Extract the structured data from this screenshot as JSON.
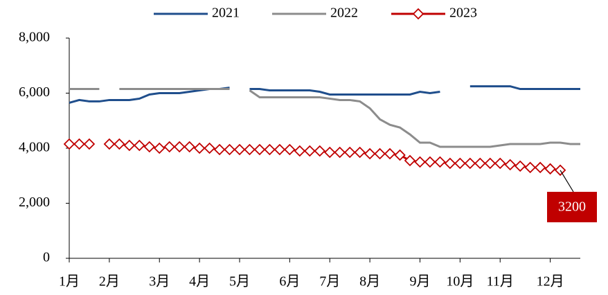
{
  "chart_data": {
    "type": "line",
    "categories": [
      "1月",
      null,
      null,
      null,
      "2月",
      null,
      null,
      null,
      null,
      "3月",
      null,
      null,
      null,
      "4月",
      null,
      null,
      null,
      "5月",
      null,
      null,
      null,
      null,
      "6月",
      null,
      null,
      null,
      "7月",
      null,
      null,
      null,
      "8月",
      null,
      null,
      null,
      null,
      "9月",
      null,
      null,
      null,
      "10月",
      null,
      null,
      null,
      "11月",
      null,
      null,
      null,
      null,
      "12月",
      null,
      null,
      null
    ],
    "series": [
      {
        "name": "2021",
        "color": "#1f4e8c",
        "values": [
          5650,
          5750,
          5700,
          5700,
          5750,
          5750,
          5750,
          5800,
          5950,
          6000,
          6000,
          6000,
          6050,
          6100,
          6150,
          6150,
          6200,
          null,
          6150,
          6150,
          6100,
          6100,
          6100,
          6100,
          6100,
          6050,
          5950,
          5950,
          5950,
          5950,
          5950,
          5950,
          5950,
          5950,
          5950,
          6050,
          6000,
          6050,
          null,
          null,
          6250,
          6250,
          6250,
          6250,
          6250,
          6150,
          6150,
          6150,
          6150,
          6150,
          6150,
          6150
        ]
      },
      {
        "name": "2022",
        "color": "#8c8c8c",
        "values": [
          6150,
          6150,
          6150,
          6150,
          null,
          6150,
          6150,
          6150,
          6150,
          6150,
          6150,
          6150,
          6150,
          6150,
          6150,
          6150,
          6150,
          null,
          6100,
          5850,
          5850,
          5850,
          5850,
          5850,
          5850,
          5850,
          5800,
          5750,
          5750,
          5700,
          5450,
          5050,
          4850,
          4750,
          4500,
          4200,
          4200,
          4050,
          4050,
          4050,
          4050,
          4050,
          4050,
          4100,
          4150,
          4150,
          4150,
          4150,
          4200,
          4200,
          4150,
          4150
        ]
      },
      {
        "name": "2023",
        "color": "#c00000",
        "marker": "diamond",
        "values": [
          4150,
          4150,
          4150,
          null,
          4150,
          4150,
          4100,
          4100,
          4050,
          4000,
          4050,
          4050,
          4050,
          4000,
          4000,
          3950,
          3950,
          3950,
          3950,
          3950,
          3950,
          3950,
          3950,
          3900,
          3900,
          3900,
          3850,
          3850,
          3850,
          3850,
          3800,
          3800,
          3800,
          3750,
          3550,
          3500,
          3500,
          3500,
          3450,
          3450,
          3450,
          3450,
          3450,
          3450,
          3400,
          3350,
          3300,
          3300,
          3250,
          3200,
          null,
          null
        ]
      }
    ],
    "annotation": "3200",
    "ylim": [
      0,
      8000
    ],
    "yticks": [
      0,
      {
        "value": 2000,
        "label": "2,000"
      },
      {
        "value": 4000,
        "label": "4,000"
      },
      {
        "value": 6000,
        "label": "6,000"
      },
      {
        "value": 8000,
        "label": "8,000"
      }
    ],
    "grid": false,
    "legend": "top"
  }
}
